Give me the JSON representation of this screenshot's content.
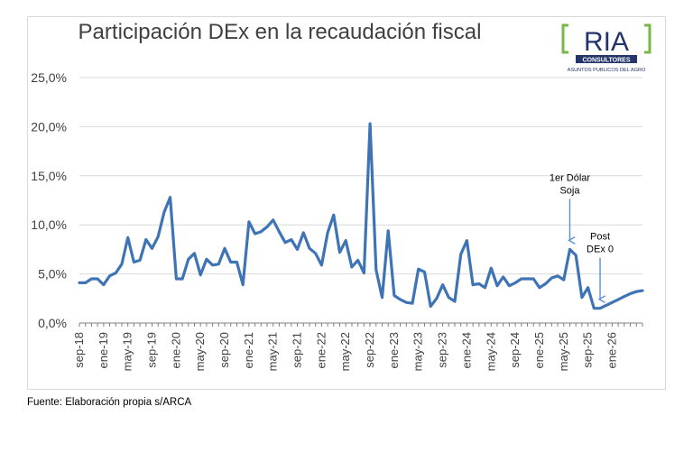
{
  "chart_data": {
    "type": "line",
    "title": "Participación DEx en la recaudación fiscal",
    "xlabel": "",
    "ylabel": "",
    "ylim": [
      0,
      25
    ],
    "y_tick_values": [
      0,
      5,
      10,
      15,
      20,
      25
    ],
    "y_tick_labels": [
      "0,0%",
      "5,0%",
      "10,0%",
      "15,0%",
      "20,0%",
      "25,0%"
    ],
    "x_tick_labels": [
      "sep-18",
      "ene-19",
      "may-19",
      "sep-19",
      "ene-20",
      "may-20",
      "sep-20",
      "ene-21",
      "may-21",
      "sep-21",
      "ene-22",
      "may-22",
      "sep-22",
      "ene-23",
      "may-23",
      "sep-23",
      "ene-24",
      "may-24",
      "sep-24",
      "ene-25",
      "may-25",
      "sep-25",
      "ene-26"
    ],
    "grid": true,
    "legend": "none",
    "color": "#3e74b5",
    "series": [
      {
        "values": [
          4.1,
          4.1,
          4.5,
          4.5,
          3.9,
          4.8,
          5.1,
          6.0,
          8.7,
          6.2,
          6.4,
          8.5,
          7.6,
          8.8,
          11.3,
          12.8,
          4.5,
          4.5,
          6.5,
          7.1,
          4.9,
          6.5,
          5.9,
          6.0,
          7.6,
          6.2,
          6.2,
          3.9,
          10.3,
          9.1,
          9.3,
          9.8,
          10.5,
          9.3,
          8.2,
          8.5,
          7.5,
          9.2,
          7.6,
          7.1,
          5.9,
          9.2,
          11.0,
          7.2,
          8.4,
          5.7,
          6.4,
          5.1,
          20.3,
          5.4,
          2.6,
          9.4,
          2.8,
          2.4,
          2.1,
          2.0,
          5.5,
          5.2,
          1.7,
          2.5,
          3.9,
          2.6,
          2.2,
          7.0,
          8.4,
          3.9,
          4.0,
          3.6,
          5.6,
          3.8,
          4.7,
          3.8,
          4.1,
          4.5,
          4.5,
          4.5,
          3.6,
          4.0,
          4.6,
          4.8,
          4.4,
          7.5,
          6.9,
          2.6,
          3.6,
          1.5,
          1.5,
          1.8,
          2.1,
          2.4,
          2.7,
          3.0,
          3.2,
          3.3
        ]
      }
    ],
    "annotations": [
      {
        "lines": [
          "1er Dólar",
          "Soja"
        ],
        "x_index": 81
      },
      {
        "lines": [
          "Post",
          "DEx 0"
        ],
        "x_index": 86
      }
    ]
  },
  "logo": {
    "name": "RIA",
    "sub": "CONSULTORES",
    "tagline": "ASUNTOS PUBLICOS DEL AGRO",
    "green": "#7ab648",
    "navy": "#23356b"
  },
  "source": "Fuente: Elaboración propia s/ARCA"
}
